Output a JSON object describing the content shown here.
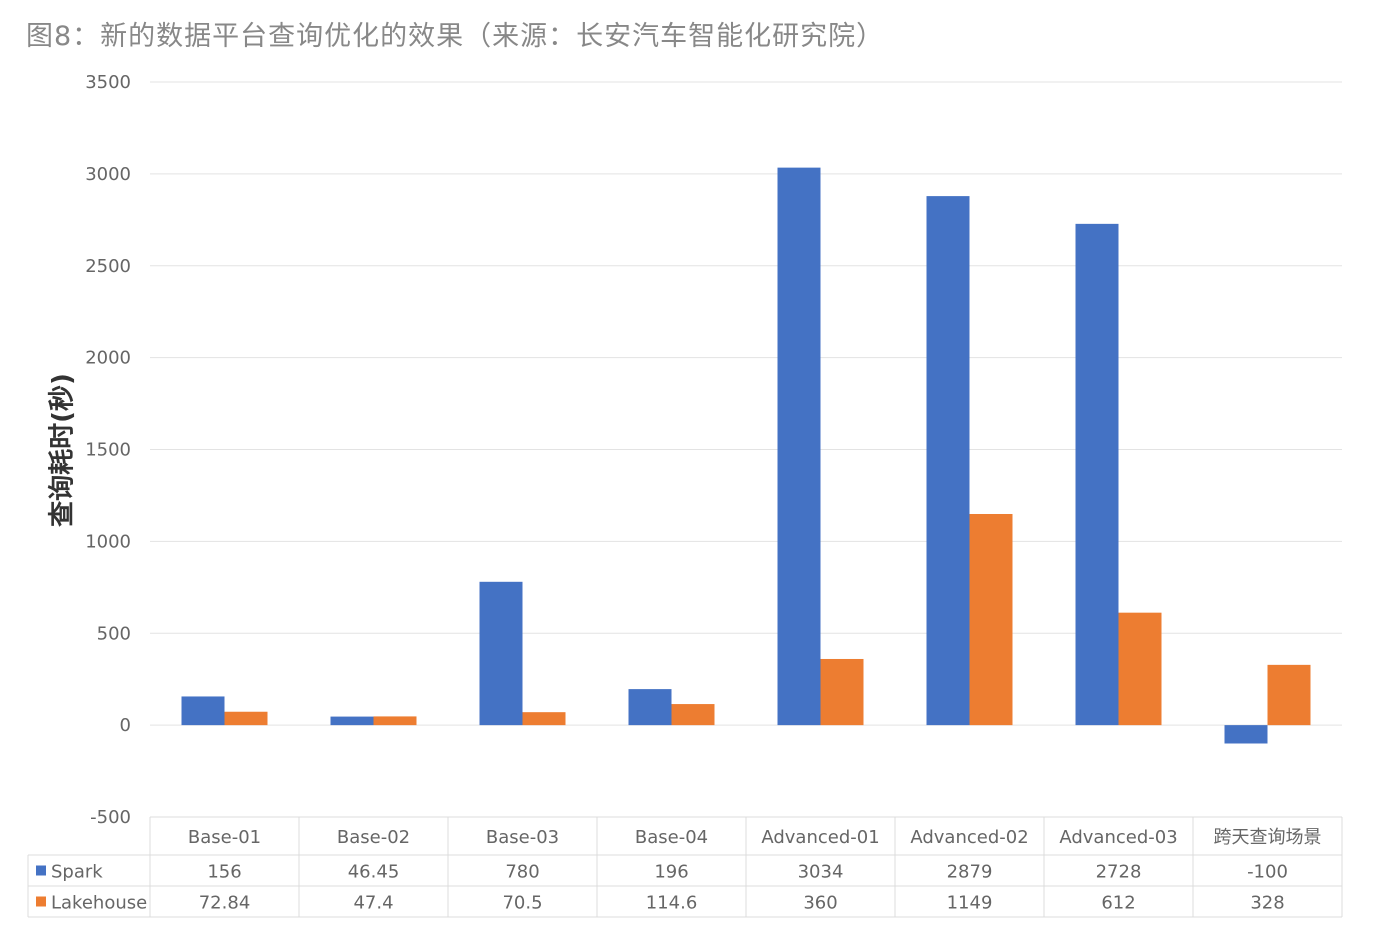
{
  "chart_data": {
    "type": "bar",
    "title": "图8：新的数据平台查询优化的效果（来源：长安汽车智能化研究院）",
    "ylabel": "查询耗时(秒)",
    "xlabel": "",
    "ylim": [
      -500,
      3500
    ],
    "yticks": [
      3500,
      3000,
      2500,
      2000,
      1500,
      1000,
      500,
      0,
      -500
    ],
    "grid": true,
    "legend": "data-table-left",
    "categories": [
      "Base-01",
      "Base-02",
      "Base-03",
      "Base-04",
      "Advanced-01",
      "Advanced-02",
      "Advanced-03",
      "跨天查询场景"
    ],
    "series": [
      {
        "name": "Spark",
        "color": "#4472C4",
        "values": [
          156,
          46.45,
          780,
          196,
          3034,
          2879,
          2728,
          -100
        ],
        "labels": [
          "156",
          "46.45",
          "780",
          "196",
          "3034",
          "2879",
          "2728",
          "-100"
        ]
      },
      {
        "name": "Lakehouse",
        "color": "#ED7D31",
        "values": [
          72.84,
          47.4,
          70.5,
          114.6,
          360,
          1149,
          612,
          328
        ],
        "labels": [
          "72.84",
          "47.4",
          "70.5",
          "114.6",
          "360",
          "1149",
          "612",
          "328"
        ]
      }
    ]
  }
}
